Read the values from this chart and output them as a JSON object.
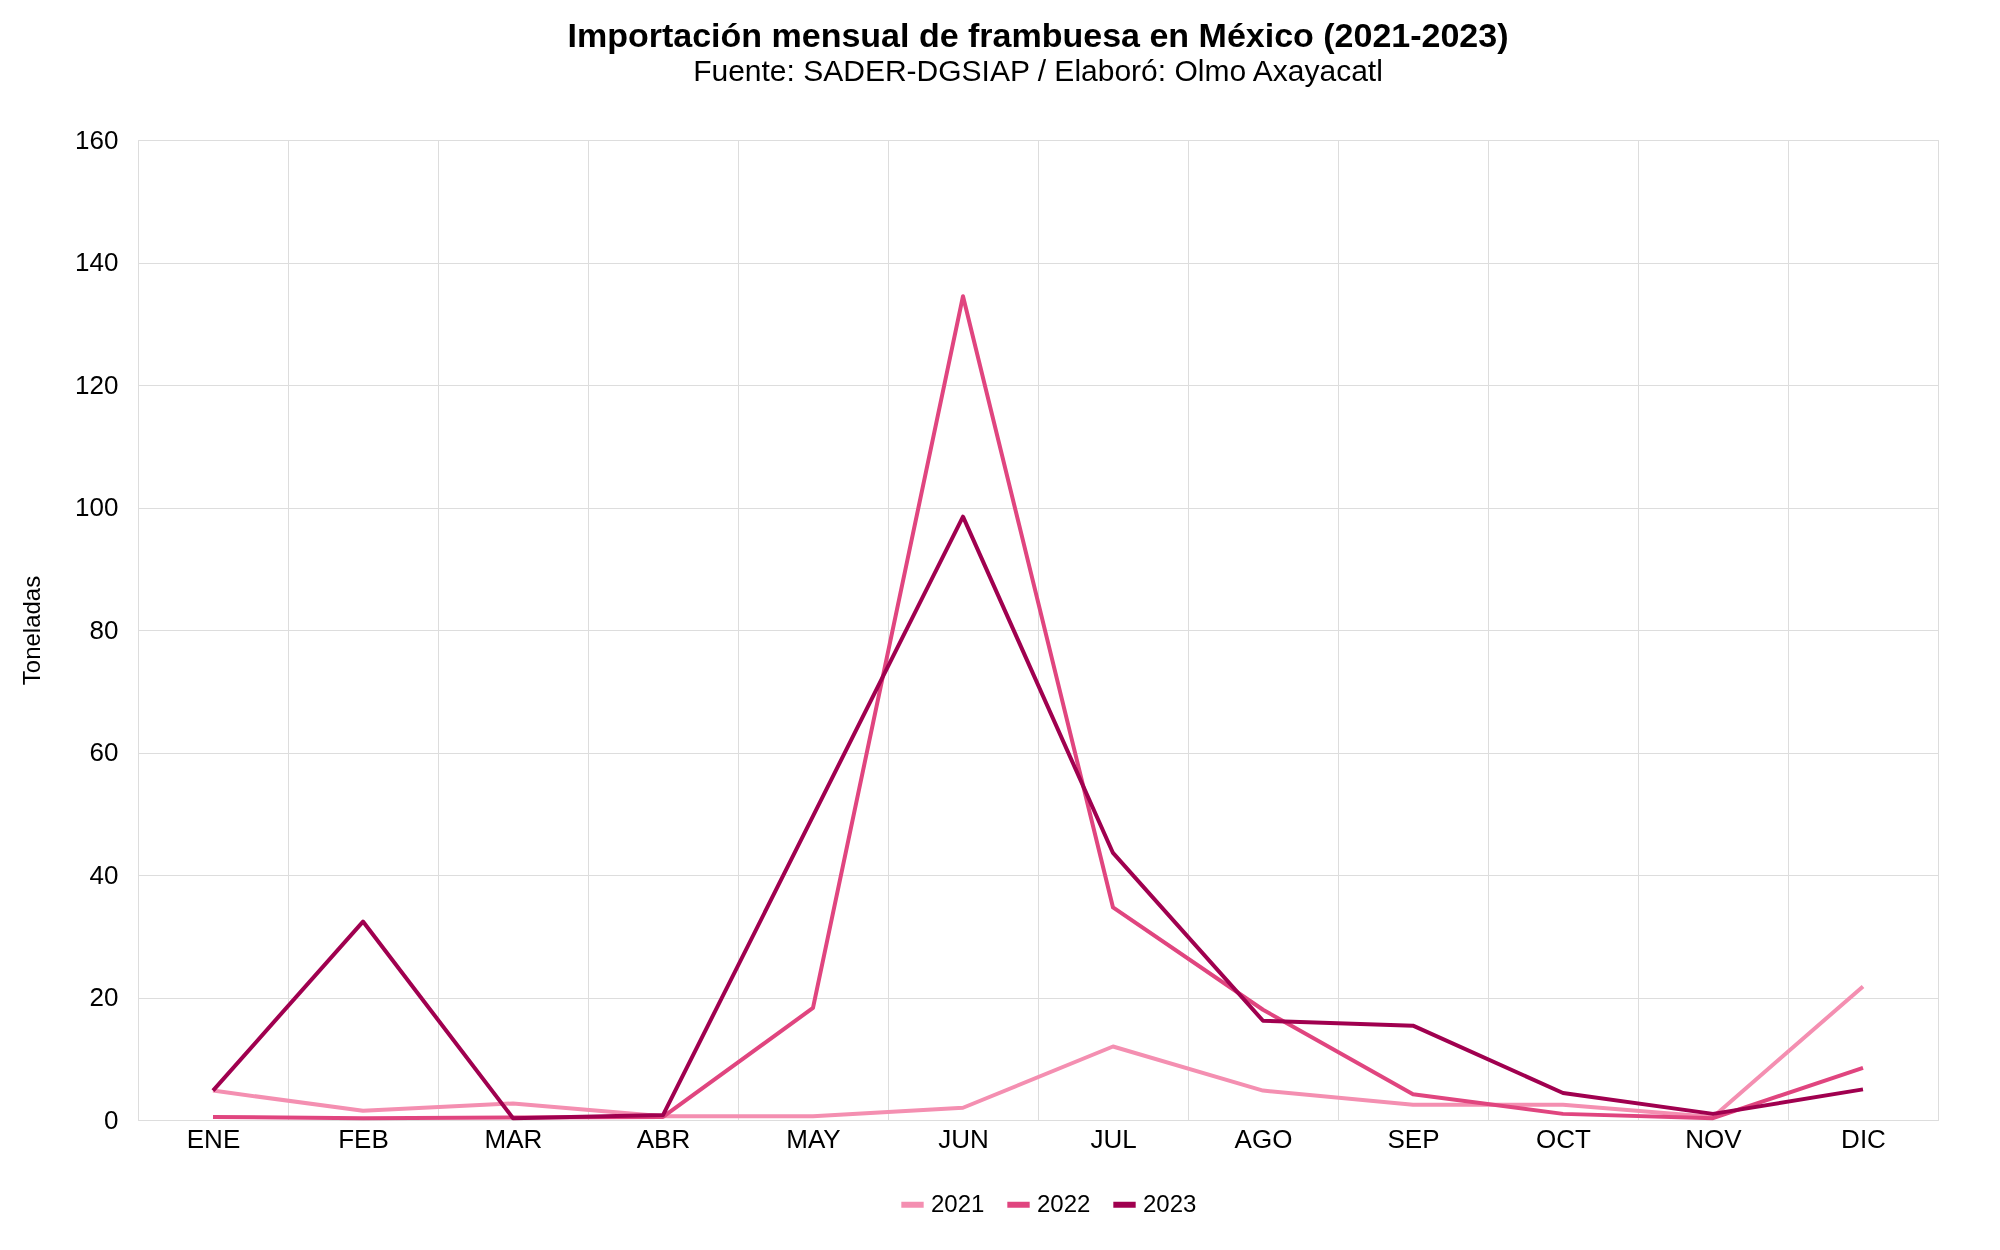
{
  "chart_data": {
    "type": "line",
    "title": "Importación mensual de frambuesa en México (2021-2023)",
    "subtitle": "Fuente: SADER-DGSIAP / Elaboró: Olmo Axayacatl",
    "ylabel": "Toneladas",
    "categories": [
      "ENE",
      "FEB",
      "MAR",
      "ABR",
      "MAY",
      "JUN",
      "JUL",
      "AGO",
      "SEP",
      "OCT",
      "NOV",
      "DIC"
    ],
    "series": [
      {
        "name": "2021",
        "color": "#f48fb1",
        "values": [
          4.8,
          1.5,
          2.7,
          0.6,
          0.6,
          2,
          12,
          4.8,
          2.5,
          2.5,
          0.5,
          21.8
        ]
      },
      {
        "name": "2022",
        "color": "#e0457f",
        "values": [
          0.5,
          0.3,
          0.4,
          0.5,
          18.3,
          134.5,
          34.7,
          18,
          4.2,
          1,
          0.3,
          8.5
        ]
      },
      {
        "name": "2023",
        "color": "#a0004f",
        "values": [
          4.8,
          32.4,
          0.3,
          0.8,
          49.6,
          98.5,
          43.6,
          16.2,
          15.4,
          4.4,
          1,
          5
        ]
      }
    ],
    "ylim": [
      0,
      160
    ],
    "yticks": [
      0,
      20,
      40,
      60,
      80,
      100,
      120,
      140,
      160
    ],
    "grid": true,
    "legend": "bottom",
    "marker": "none",
    "line_style": "solid"
  }
}
